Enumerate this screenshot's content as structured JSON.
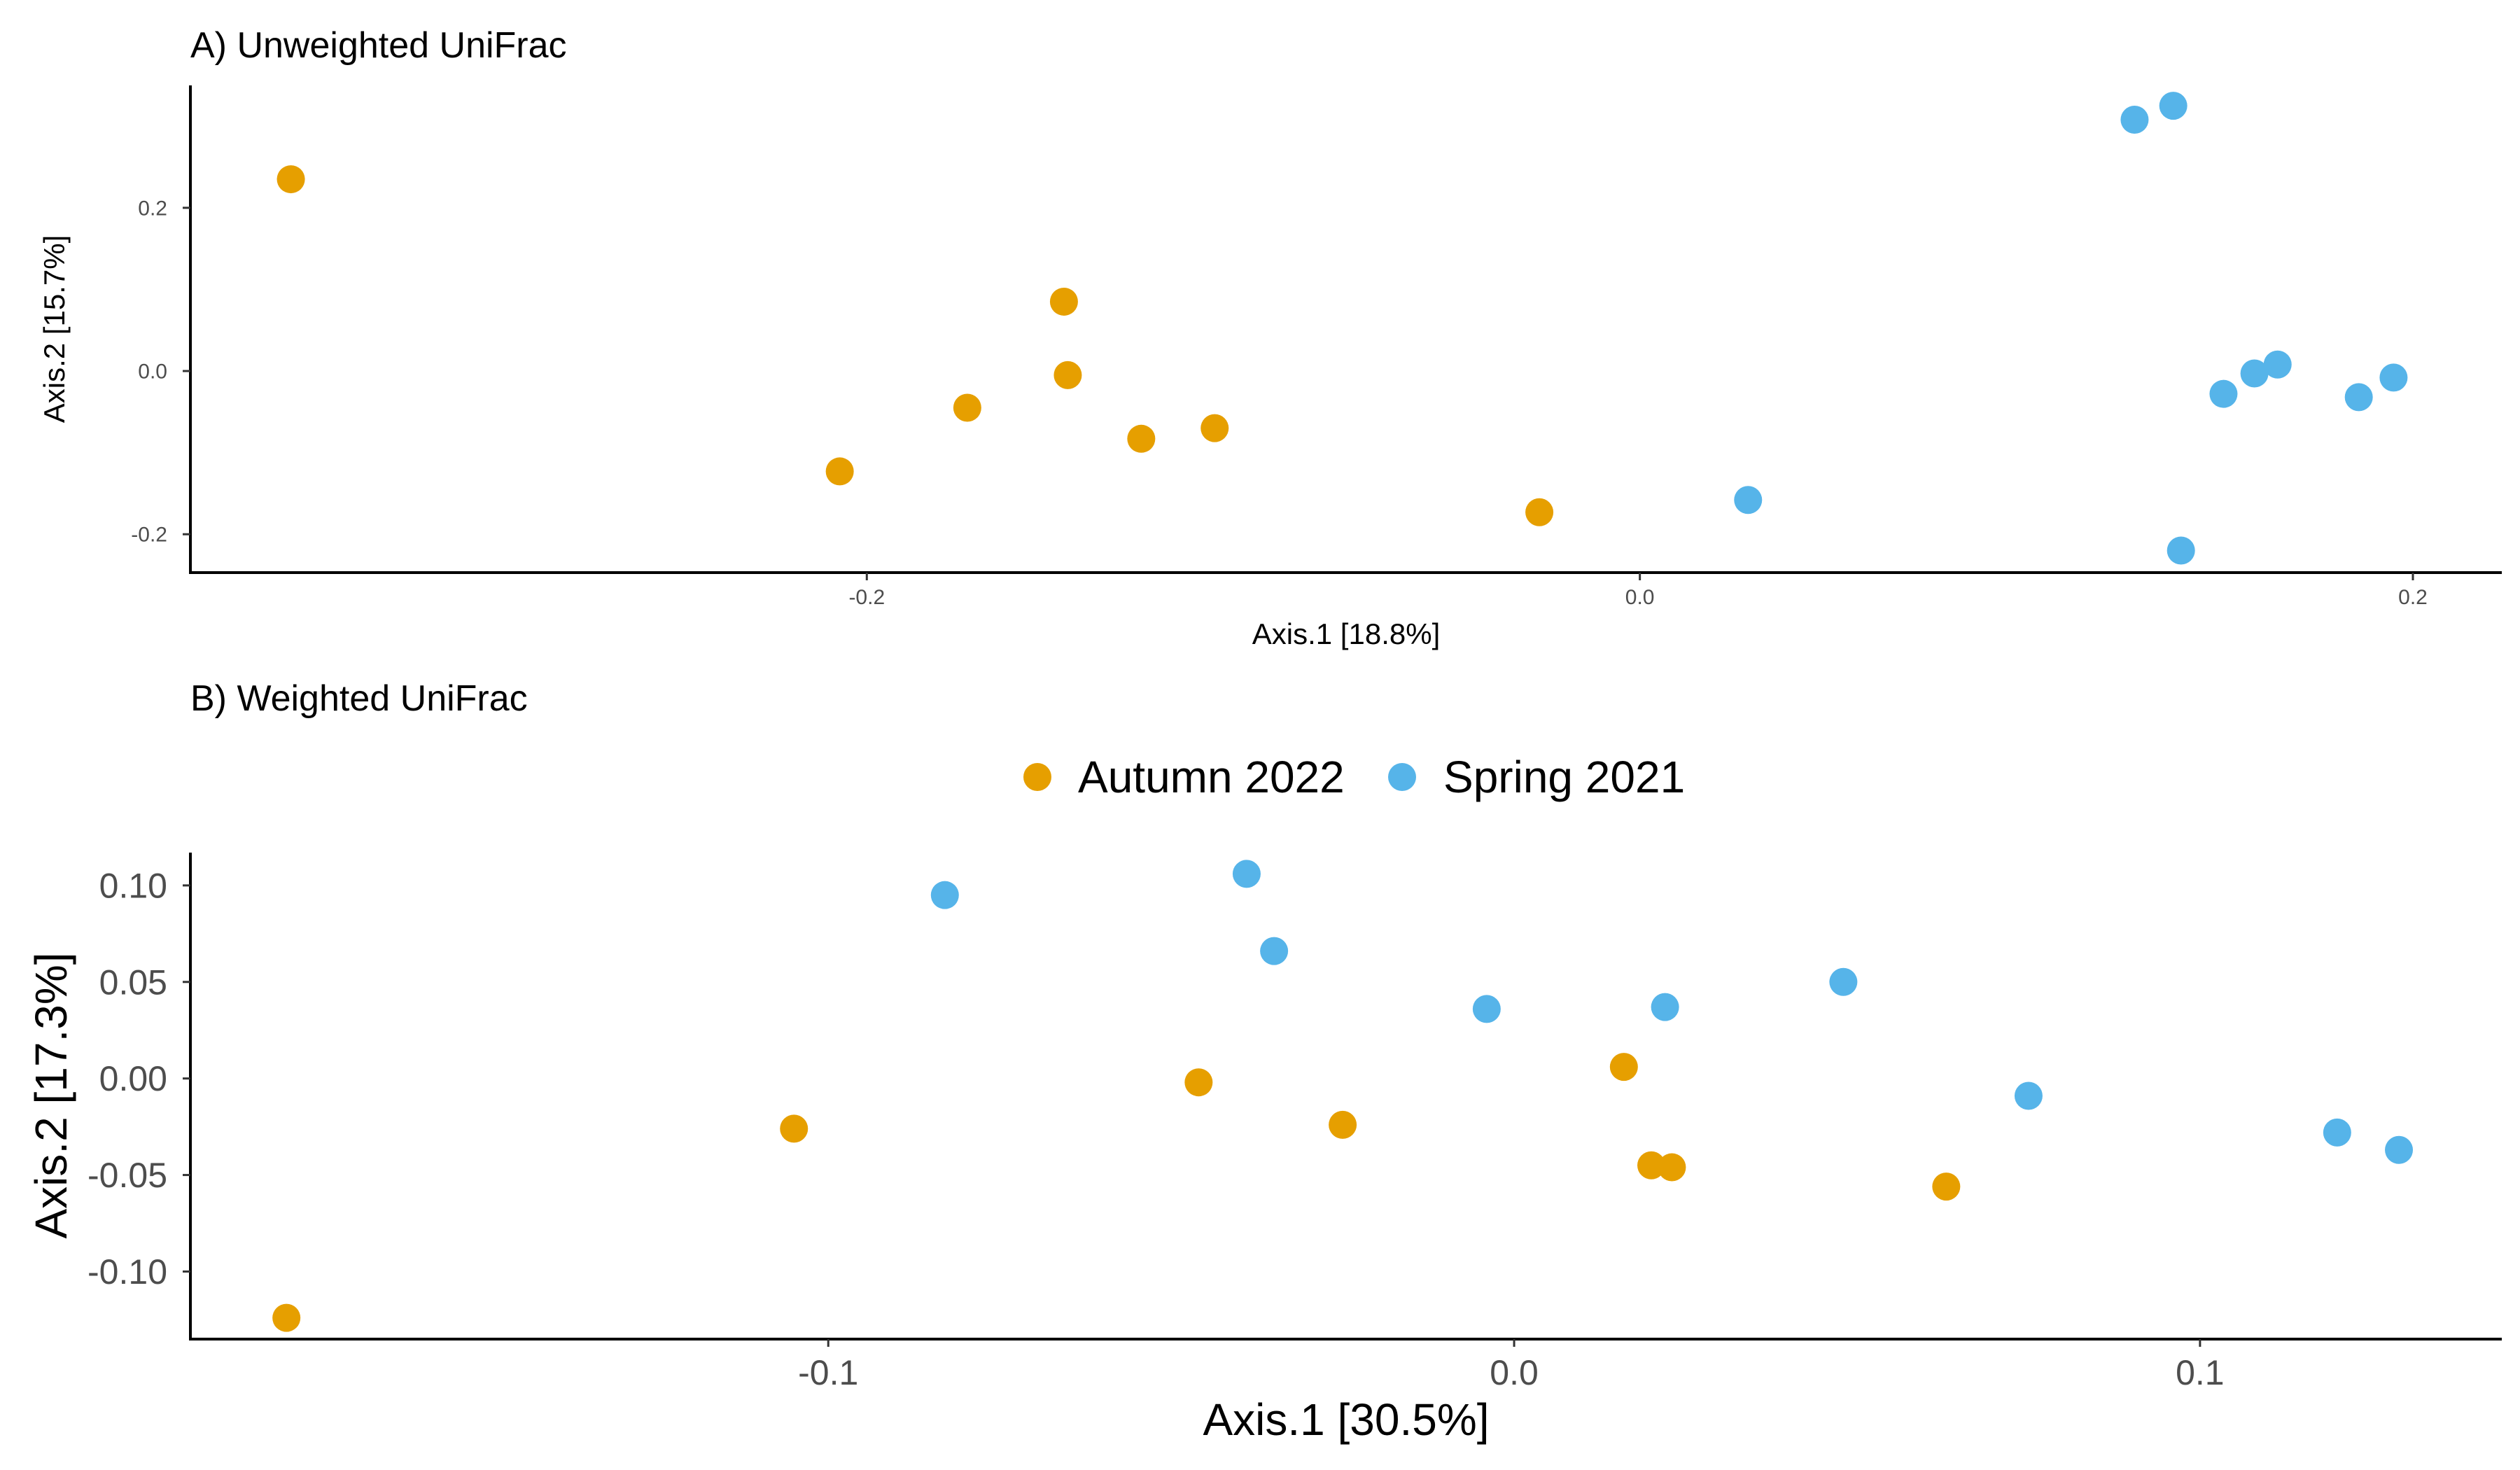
{
  "colors": {
    "Autumn 2022": "#E69F00",
    "Spring 2021": "#56B4E9"
  },
  "legend": {
    "position": "top-center",
    "items": [
      {
        "label": "Autumn 2022",
        "color": "#E69F00"
      },
      {
        "label": "Spring 2021",
        "color": "#56B4E9"
      }
    ]
  },
  "chart_data": [
    {
      "type": "scatter",
      "title": "A) Unweighted UniFrac",
      "xlabel": "Axis.1   [18.8%]",
      "ylabel": "Axis.2   [15.7%]",
      "xlim": [
        -0.375,
        0.223
      ],
      "ylim": [
        -0.247,
        0.35
      ],
      "xticks": [
        -0.2,
        0.0,
        0.2
      ],
      "xtick_labels": [
        "-0.2",
        "0.0",
        "0.2"
      ],
      "yticks": [
        -0.2,
        0.0,
        0.2
      ],
      "ytick_labels": [
        "-0.2",
        "0.0",
        "0.2"
      ],
      "grid": false,
      "series": [
        {
          "name": "Autumn 2022",
          "points": [
            [
              -0.349,
              0.235
            ],
            [
              -0.149,
              0.085
            ],
            [
              -0.148,
              -0.005
            ],
            [
              -0.174,
              -0.045
            ],
            [
              -0.207,
              -0.123
            ],
            [
              -0.129,
              -0.083
            ],
            [
              -0.11,
              -0.07
            ],
            [
              -0.026,
              -0.173
            ]
          ]
        },
        {
          "name": "Spring 2021",
          "points": [
            [
              0.128,
              0.308
            ],
            [
              0.138,
              0.325
            ],
            [
              0.151,
              -0.028
            ],
            [
              0.159,
              -0.003
            ],
            [
              0.165,
              0.008
            ],
            [
              0.186,
              -0.032
            ],
            [
              0.195,
              -0.008
            ],
            [
              0.028,
              -0.158
            ],
            [
              0.14,
              -0.22
            ]
          ]
        }
      ]
    },
    {
      "type": "scatter",
      "title": "B) Weighted UniFrac",
      "xlabel": "Axis.1   [30.5%]",
      "ylabel": "Axis.2   [17.3%]",
      "xlim": [
        -0.193,
        0.144
      ],
      "ylim": [
        -0.135,
        0.117
      ],
      "xticks": [
        -0.1,
        0.0,
        0.1
      ],
      "xtick_labels": [
        "-0.1",
        "0.0",
        "0.1"
      ],
      "yticks": [
        0.1,
        0.05,
        0.0,
        -0.05,
        -0.1
      ],
      "ytick_labels": [
        "0.10",
        "0.05",
        "0.00",
        "-0.05",
        "-0.10"
      ],
      "grid": false,
      "series": [
        {
          "name": "Autumn 2022",
          "points": [
            [
              -0.179,
              -0.124
            ],
            [
              -0.105,
              -0.026
            ],
            [
              -0.046,
              -0.002
            ],
            [
              -0.025,
              -0.024
            ],
            [
              0.016,
              0.006
            ],
            [
              0.02,
              -0.045
            ],
            [
              0.023,
              -0.046
            ],
            [
              0.063,
              -0.056
            ]
          ]
        },
        {
          "name": "Spring 2021",
          "points": [
            [
              -0.083,
              0.095
            ],
            [
              -0.039,
              0.106
            ],
            [
              -0.035,
              0.066
            ],
            [
              -0.004,
              0.036
            ],
            [
              0.022,
              0.037
            ],
            [
              0.048,
              0.05
            ],
            [
              0.075,
              -0.009
            ],
            [
              0.12,
              -0.028
            ],
            [
              0.129,
              -0.037
            ]
          ]
        }
      ]
    }
  ]
}
